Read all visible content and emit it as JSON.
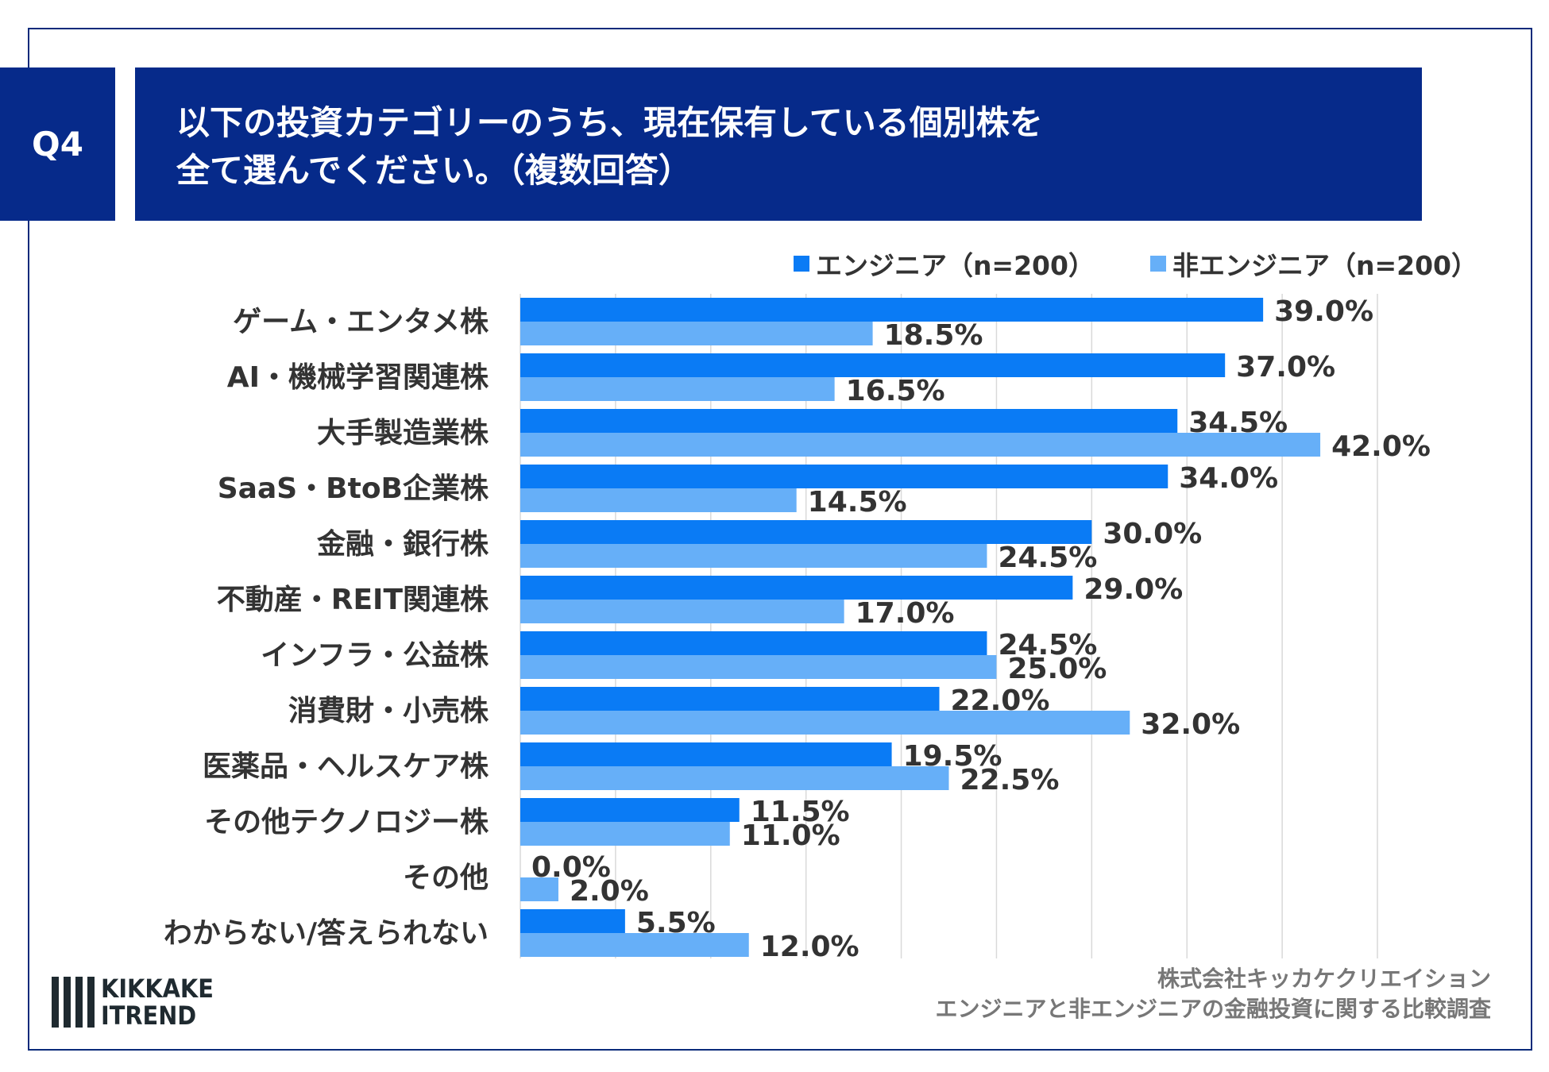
{
  "header": {
    "q_label": "Q4",
    "title_line1": "以下の投資カテゴリーのうち、現在保有している個別株を",
    "title_line2": "全て選んでください。（複数回答）"
  },
  "footer": {
    "company": "株式会社キッカケクリエイション",
    "survey": "エンジニアと非エンジニアの金融投資に関する比較調査"
  },
  "logo": {
    "line1": "KIKKAKE",
    "line2": "ITREND"
  },
  "chart_data": {
    "type": "bar",
    "orientation": "horizontal",
    "categories": [
      "ゲーム・エンタメ株",
      "AI・機械学習関連株",
      "大手製造業株",
      "SaaS・BtoB企業株",
      "金融・銀行株",
      "不動産・REIT関連株",
      "インフラ・公益株",
      "消費財・小売株",
      "医薬品・ヘルスケア株",
      "その他テクノロジー株",
      "その他",
      "わからない/答えられない"
    ],
    "series": [
      {
        "name": "エンジニア（n=200）",
        "color": "#0a7bf5",
        "values": [
          39.0,
          37.0,
          34.5,
          34.0,
          30.0,
          29.0,
          24.5,
          22.0,
          19.5,
          11.5,
          0.0,
          5.5
        ]
      },
      {
        "name": "非エンジニア（n=200）",
        "color": "#66aff8",
        "values": [
          18.5,
          16.5,
          42.0,
          14.5,
          24.5,
          17.0,
          25.0,
          32.0,
          22.5,
          11.0,
          2.0,
          12.0
        ]
      }
    ],
    "xlim": [
      0,
      45
    ],
    "grid": true,
    "grid_step": 5,
    "legend": "top-right",
    "value_format": "0.0%"
  }
}
